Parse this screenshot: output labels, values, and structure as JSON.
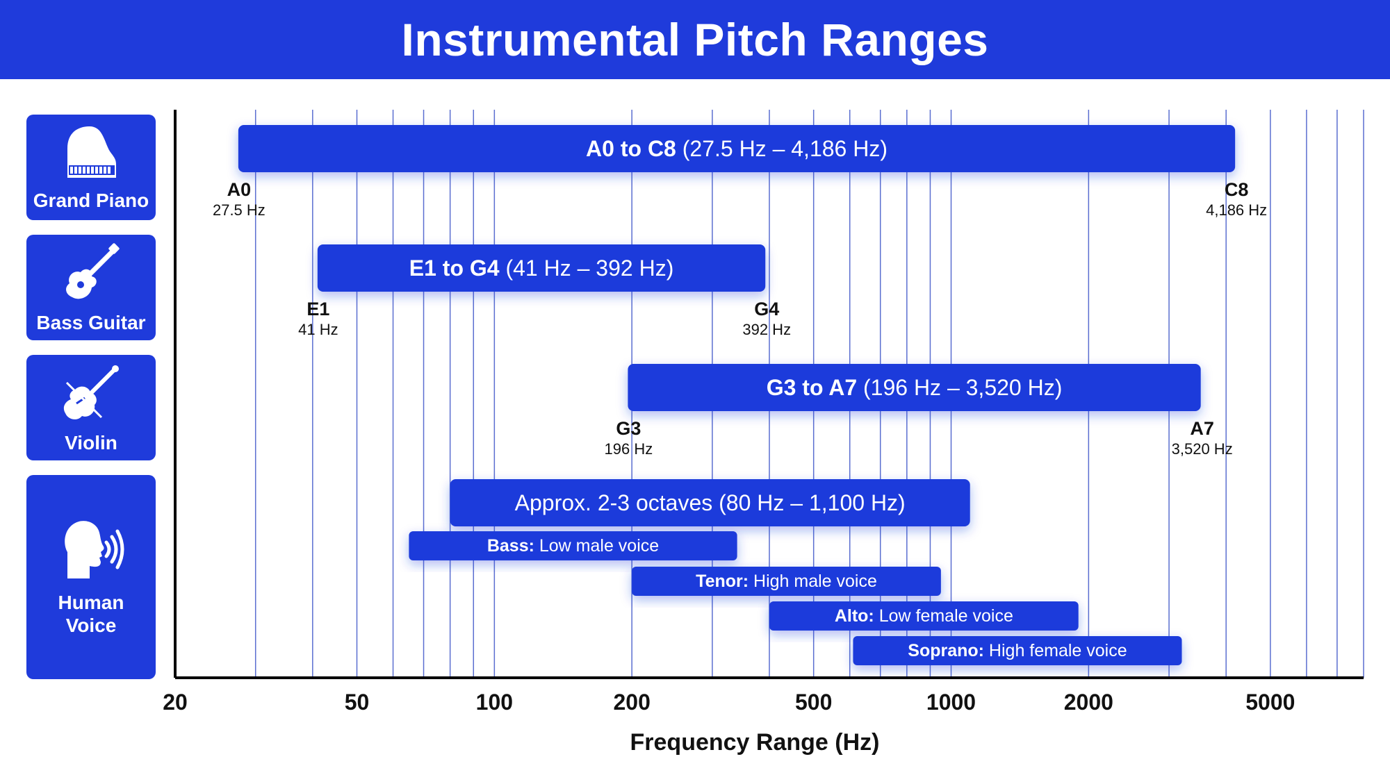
{
  "title": "Instrumental Pitch Ranges",
  "colors": {
    "brand": "#1f3bdb",
    "gridline": "#3d55c8",
    "axis": "#000000"
  },
  "instruments": [
    {
      "label": "Grand Piano",
      "icon": "grand-piano-icon"
    },
    {
      "label": "Bass Guitar",
      "icon": "bass-guitar-icon"
    },
    {
      "label": "Violin",
      "icon": "violin-icon"
    },
    {
      "label": "Human\nVoice",
      "icon": "human-voice-icon"
    }
  ],
  "chart_data": {
    "type": "bar",
    "orientation": "horizontal-range",
    "title": "Instrumental Pitch Ranges",
    "xlabel": "Frequency Range (Hz)",
    "ylabel": "",
    "xscale": "log",
    "xlim": [
      20,
      8000
    ],
    "grid": true,
    "xticks": [
      {
        "value": 20,
        "label": "20"
      },
      {
        "value": 50,
        "label": "50"
      },
      {
        "value": 100,
        "label": "100"
      },
      {
        "value": 200,
        "label": "200"
      },
      {
        "value": 500,
        "label": "500"
      },
      {
        "value": 1000,
        "label": "1000"
      },
      {
        "value": 2000,
        "label": "2000"
      },
      {
        "value": 5000,
        "label": "5000"
      }
    ],
    "gridlines": [
      30,
      40,
      50,
      60,
      70,
      80,
      90,
      100,
      200,
      300,
      400,
      500,
      600,
      700,
      800,
      900,
      1000,
      2000,
      3000,
      4000,
      5000,
      6000,
      7000,
      8000
    ],
    "ranges": [
      {
        "category": "Grand Piano",
        "low": 27.5,
        "high": 4186,
        "bold": "A0 to C8",
        "normal": " (27.5 Hz – 4,186 Hz)",
        "low_note": "A0",
        "low_freq": "27.5 Hz",
        "high_note": "C8",
        "high_freq": "4,186 Hz"
      },
      {
        "category": "Bass Guitar",
        "low": 41,
        "high": 392,
        "bold": "E1 to G4",
        "normal": " (41 Hz – 392 Hz)",
        "low_note": "E1",
        "low_freq": "41 Hz",
        "high_note": "G4",
        "high_freq": "392 Hz"
      },
      {
        "category": "Violin",
        "low": 196,
        "high": 3520,
        "bold": "G3 to A7",
        "normal": " (196 Hz – 3,520 Hz)",
        "low_note": "G3",
        "low_freq": "196 Hz",
        "high_note": "A7",
        "high_freq": "3,520 Hz"
      },
      {
        "category": "Human Voice",
        "low": 80,
        "high": 1100,
        "bold": "",
        "normal": "Approx. 2-3 octaves (80 Hz – 1,100 Hz)"
      }
    ],
    "voice_types": [
      {
        "bold": "Bass:",
        "normal": " Low male voice",
        "low": 65,
        "high": 340
      },
      {
        "bold": "Tenor:",
        "normal": " High male voice",
        "low": 200,
        "high": 950
      },
      {
        "bold": "Alto:",
        "normal": " Low female voice",
        "low": 400,
        "high": 1900
      },
      {
        "bold": "Soprano:",
        "normal": " High female voice",
        "low": 610,
        "high": 3200
      }
    ]
  }
}
